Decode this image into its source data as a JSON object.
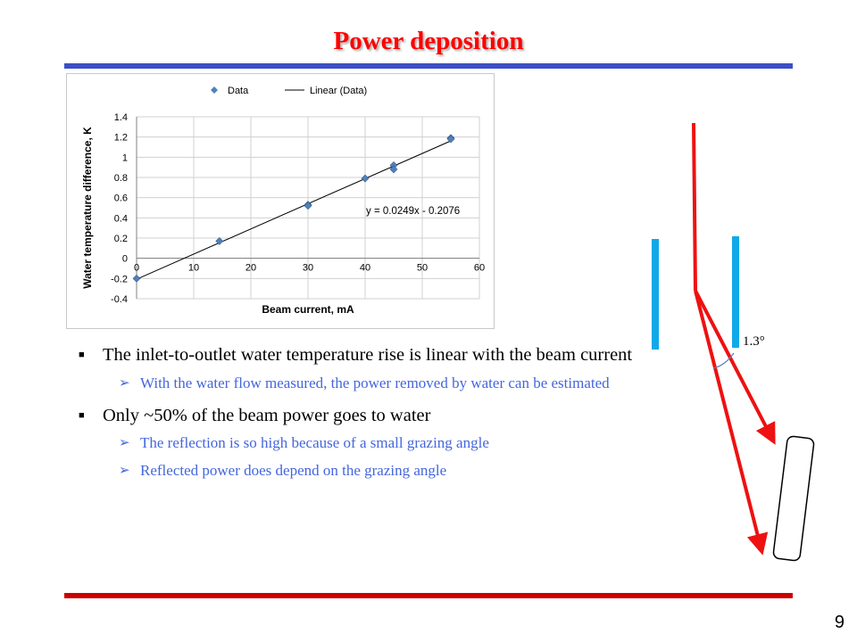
{
  "slide": {
    "title": "Power deposition",
    "page_number": "9",
    "colors": {
      "title": "#ff0000",
      "top_rule": "#3b4fc4",
      "bottom_rule": "#cc0000",
      "sub_bullet": "#4466dd"
    }
  },
  "chart_data": {
    "type": "scatter",
    "legend": {
      "position": "top",
      "entries": [
        "Data",
        "Linear (Data)"
      ]
    },
    "xlabel": "Beam current, mA",
    "ylabel": "Water temperature difference, K",
    "xlim": [
      0,
      60
    ],
    "ylim": [
      -0.4,
      1.4
    ],
    "x_ticks": [
      0,
      10,
      20,
      30,
      40,
      50,
      60
    ],
    "y_ticks": [
      -0.4,
      -0.2,
      0,
      0.2,
      0.4,
      0.6,
      0.8,
      1,
      1.2,
      1.4
    ],
    "grid": true,
    "series": [
      {
        "name": "Data",
        "points": [
          [
            0,
            -0.2
          ],
          [
            14.5,
            0.17
          ],
          [
            30,
            0.53
          ],
          [
            30,
            0.52
          ],
          [
            40,
            0.79
          ],
          [
            45,
            0.92
          ],
          [
            45,
            0.88
          ],
          [
            55,
            1.19
          ],
          [
            55,
            1.18
          ]
        ]
      }
    ],
    "trendline": {
      "name": "Linear (Data)",
      "slope": 0.0249,
      "intercept": -0.2076,
      "label": "y = 0.0249x  - 0.2076",
      "annotation_x": 40
    }
  },
  "bullets": [
    {
      "text": "The inlet-to-outlet water temperature rise is linear with the beam current",
      "sub": [
        "With the water flow measured, the power removed by water can be estimated"
      ]
    },
    {
      "text": "Only ~50% of the beam power goes to water",
      "sub": [
        "The reflection is so high because of a small grazing angle",
        "Reflected power does depend on the grazing angle"
      ]
    }
  ],
  "diagram": {
    "angle_label": "1.3°",
    "beam_color": "#ee1111",
    "plate_color": "#11a8e8"
  }
}
